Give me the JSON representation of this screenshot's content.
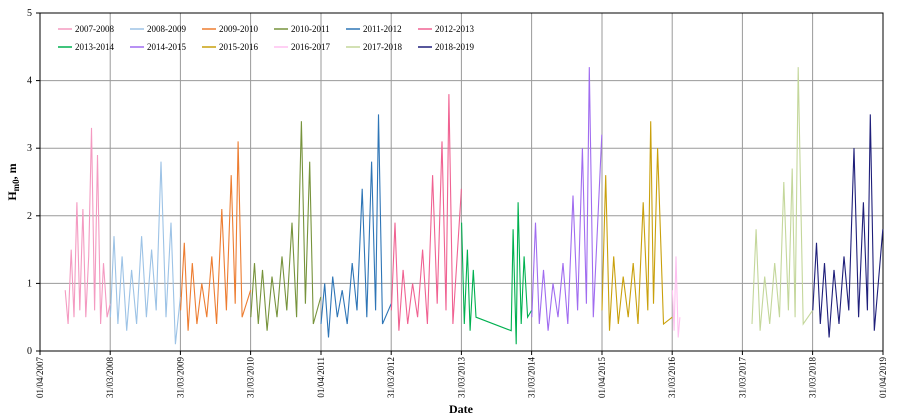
{
  "chart_data": {
    "type": "line",
    "x_label": "Date",
    "y_label": {
      "symbol": "H",
      "subscript": "m0",
      "unit": ", m"
    },
    "xlim": [
      "2007-04-01",
      "2019-04-01"
    ],
    "xticks": [
      {
        "value": "2007-04-01",
        "label": "01/04/2007"
      },
      {
        "value": "2008-03-31",
        "label": "31/03/2008"
      },
      {
        "value": "2009-03-31",
        "label": "31/03/2009"
      },
      {
        "value": "2010-03-31",
        "label": "31/03/2010"
      },
      {
        "value": "2011-04-01",
        "label": "01/04/2011"
      },
      {
        "value": "2012-03-31",
        "label": "31/03/2012"
      },
      {
        "value": "2013-03-31",
        "label": "31/03/2013"
      },
      {
        "value": "2014-03-31",
        "label": "31/03/2014"
      },
      {
        "value": "2015-04-01",
        "label": "01/04/2015"
      },
      {
        "value": "2016-03-31",
        "label": "31/03/2016"
      },
      {
        "value": "2017-03-31",
        "label": "31/03/2017"
      },
      {
        "value": "2018-03-31",
        "label": "31/03/2018"
      },
      {
        "value": "2019-04-01",
        "label": "01/04/2019"
      }
    ],
    "ylim": [
      0,
      5
    ],
    "yticks": [
      0,
      1,
      2,
      3,
      4,
      5
    ],
    "grid": true,
    "legend": "top-left",
    "series": [
      {
        "name": "2007-2008",
        "color": "#f49ac1",
        "x": [
          "2007-08-10",
          "2007-08-25",
          "2007-09-10",
          "2007-09-25",
          "2007-10-10",
          "2007-10-25",
          "2007-11-10",
          "2007-11-25",
          "2007-12-10",
          "2007-12-25",
          "2008-01-10",
          "2008-01-25",
          "2008-02-10",
          "2008-02-25",
          "2008-03-15",
          "2008-03-31"
        ],
        "values": [
          0.9,
          0.4,
          1.5,
          0.5,
          2.2,
          0.6,
          2.1,
          0.5,
          1.4,
          3.3,
          0.6,
          2.9,
          0.4,
          1.3,
          0.5,
          0.7
        ]
      },
      {
        "name": "2008-2009",
        "color": "#9dc3e6",
        "x": [
          "2008-04-01",
          "2008-04-20",
          "2008-05-10",
          "2008-06-01",
          "2008-06-25",
          "2008-07-20",
          "2008-08-15",
          "2008-09-10",
          "2008-10-05",
          "2008-11-01",
          "2008-11-25",
          "2008-12-20",
          "2009-01-15",
          "2009-02-10",
          "2009-03-05",
          "2009-03-31"
        ],
        "values": [
          0.5,
          1.7,
          0.4,
          1.4,
          0.3,
          1.2,
          0.4,
          1.7,
          0.5,
          1.5,
          0.6,
          2.8,
          0.5,
          1.9,
          0.1,
          0.8
        ]
      },
      {
        "name": "2009-2010",
        "color": "#ed7d31",
        "x": [
          "2009-04-01",
          "2009-04-20",
          "2009-05-10",
          "2009-06-01",
          "2009-06-25",
          "2009-07-20",
          "2009-08-15",
          "2009-09-10",
          "2009-10-05",
          "2009-11-01",
          "2009-11-25",
          "2009-12-20",
          "2010-01-10",
          "2010-01-25",
          "2010-02-15",
          "2010-03-31"
        ],
        "values": [
          0.6,
          1.6,
          0.3,
          1.3,
          0.4,
          1.0,
          0.5,
          1.4,
          0.4,
          2.1,
          0.6,
          2.6,
          0.7,
          3.1,
          0.5,
          0.9
        ]
      },
      {
        "name": "2010-2011",
        "color": "#77933c",
        "x": [
          "2010-04-01",
          "2010-04-20",
          "2010-05-10",
          "2010-06-01",
          "2010-06-25",
          "2010-07-20",
          "2010-08-15",
          "2010-09-10",
          "2010-10-05",
          "2010-11-01",
          "2010-11-25",
          "2010-12-20",
          "2011-01-10",
          "2011-02-01",
          "2011-02-20",
          "2011-03-31"
        ],
        "values": [
          0.5,
          1.3,
          0.4,
          1.2,
          0.3,
          1.1,
          0.5,
          1.4,
          0.6,
          1.9,
          0.5,
          3.4,
          0.7,
          2.8,
          0.4,
          0.8
        ]
      },
      {
        "name": "2011-2012",
        "color": "#2e75b6",
        "x": [
          "2011-04-01",
          "2011-04-20",
          "2011-05-10",
          "2011-06-01",
          "2011-06-25",
          "2011-07-20",
          "2011-08-15",
          "2011-09-10",
          "2011-10-05",
          "2011-11-01",
          "2011-11-25",
          "2011-12-20",
          "2012-01-10",
          "2012-01-25",
          "2012-02-15",
          "2012-03-31"
        ],
        "values": [
          0.4,
          1.0,
          0.2,
          1.1,
          0.5,
          0.9,
          0.4,
          1.3,
          0.6,
          2.4,
          0.5,
          2.8,
          0.6,
          3.5,
          0.4,
          0.7
        ]
      },
      {
        "name": "2012-2013",
        "color": "#f06292",
        "x": [
          "2012-04-01",
          "2012-04-20",
          "2012-05-10",
          "2012-06-01",
          "2012-06-25",
          "2012-07-20",
          "2012-08-15",
          "2012-09-10",
          "2012-10-05",
          "2012-11-01",
          "2012-11-25",
          "2012-12-20",
          "2013-01-10",
          "2013-01-25",
          "2013-02-15",
          "2013-03-31"
        ],
        "values": [
          0.6,
          1.9,
          0.3,
          1.2,
          0.4,
          1.0,
          0.5,
          1.5,
          0.4,
          2.6,
          0.7,
          3.1,
          0.6,
          3.8,
          0.4,
          2.4
        ]
      },
      {
        "name": "2013-2014",
        "color": "#00b050",
        "x": [
          "2013-04-01",
          "2013-04-15",
          "2013-05-01",
          "2013-05-15",
          "2013-06-01",
          "2013-06-15",
          "2013-12-15",
          "2013-12-25",
          "2014-01-10",
          "2014-01-20",
          "2014-02-05",
          "2014-02-20",
          "2014-03-10",
          "2014-03-31"
        ],
        "values": [
          1.9,
          0.4,
          1.5,
          0.3,
          1.2,
          0.5,
          0.3,
          1.8,
          0.1,
          2.2,
          0.4,
          1.4,
          0.5,
          0.6
        ]
      },
      {
        "name": "2014-2015",
        "color": "#a06cf0",
        "x": [
          "2014-04-01",
          "2014-04-20",
          "2014-05-10",
          "2014-06-01",
          "2014-06-25",
          "2014-07-20",
          "2014-08-15",
          "2014-09-10",
          "2014-10-05",
          "2014-11-01",
          "2014-11-25",
          "2014-12-20",
          "2015-01-10",
          "2015-01-25",
          "2015-02-15",
          "2015-03-31"
        ],
        "values": [
          0.5,
          1.9,
          0.4,
          1.2,
          0.3,
          1.0,
          0.5,
          1.3,
          0.4,
          2.3,
          0.6,
          3.0,
          0.7,
          4.2,
          0.5,
          3.2
        ]
      },
      {
        "name": "2015-2016",
        "color": "#c9a00c",
        "x": [
          "2015-04-01",
          "2015-04-20",
          "2015-05-10",
          "2015-06-01",
          "2015-06-25",
          "2015-07-20",
          "2015-08-15",
          "2015-09-10",
          "2015-10-05",
          "2015-11-01",
          "2015-11-25",
          "2015-12-10",
          "2015-12-25",
          "2016-01-15",
          "2016-02-15",
          "2016-03-31"
        ],
        "values": [
          0.6,
          2.6,
          0.3,
          1.4,
          0.4,
          1.1,
          0.5,
          1.3,
          0.4,
          2.2,
          0.6,
          3.4,
          0.7,
          3.0,
          0.4,
          0.5
        ]
      },
      {
        "name": "2016-2017",
        "color": "#ffc0f0",
        "x": [
          "2016-04-01",
          "2016-04-10",
          "2016-04-20",
          "2016-05-01",
          "2016-05-10"
        ],
        "values": [
          0.9,
          0.3,
          1.4,
          0.2,
          0.5
        ]
      },
      {
        "name": "2017-2018",
        "color": "#c4d79b",
        "x": [
          "2017-05-20",
          "2017-06-10",
          "2017-07-01",
          "2017-07-25",
          "2017-08-20",
          "2017-09-15",
          "2017-10-10",
          "2017-11-01",
          "2017-11-25",
          "2017-12-15",
          "2017-12-30",
          "2018-01-15",
          "2018-02-10",
          "2018-03-31"
        ],
        "values": [
          0.4,
          1.8,
          0.3,
          1.1,
          0.4,
          1.3,
          0.5,
          2.5,
          0.6,
          2.7,
          0.5,
          4.2,
          0.4,
          0.6
        ]
      },
      {
        "name": "2018-2019",
        "color": "#1f1f7a",
        "x": [
          "2018-04-01",
          "2018-04-20",
          "2018-05-10",
          "2018-06-01",
          "2018-06-25",
          "2018-07-20",
          "2018-08-15",
          "2018-09-10",
          "2018-10-05",
          "2018-11-01",
          "2018-11-25",
          "2018-12-20",
          "2019-01-10",
          "2019-01-25",
          "2019-02-15",
          "2019-03-31"
        ],
        "values": [
          0.6,
          1.6,
          0.4,
          1.3,
          0.2,
          1.2,
          0.4,
          1.4,
          0.6,
          3.0,
          0.5,
          2.2,
          0.6,
          3.5,
          0.3,
          1.8
        ]
      }
    ]
  }
}
